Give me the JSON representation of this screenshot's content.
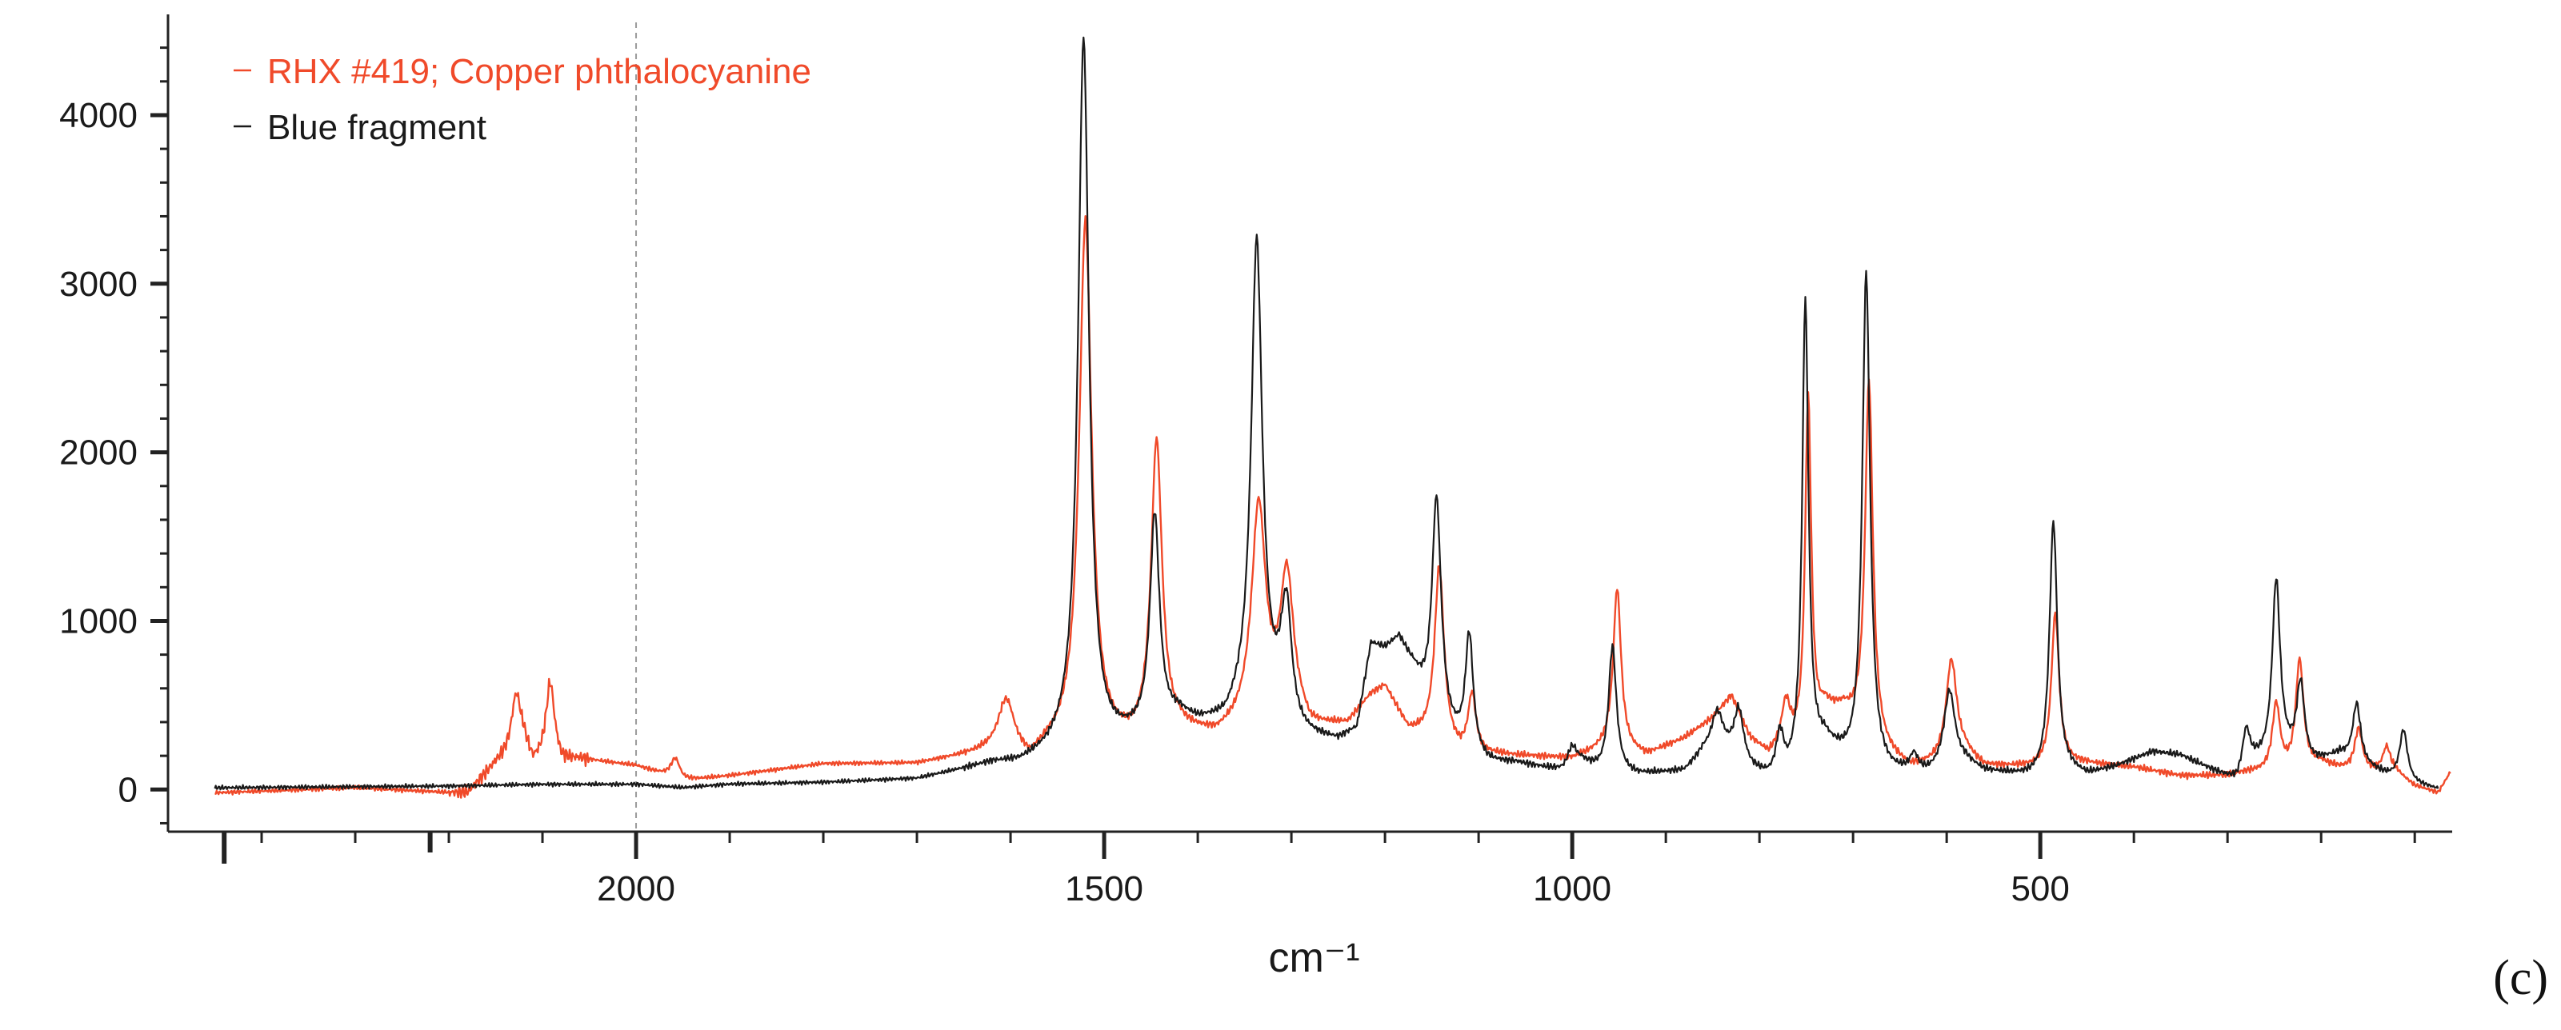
{
  "chart_data": {
    "type": "line",
    "title": "",
    "xlabel": "cm⁻¹",
    "ylabel": "",
    "xlim": [
      2500,
      60
    ],
    "ylim": [
      -250,
      4550
    ],
    "x_reversed": true,
    "grid": false,
    "reference_line": {
      "x": 2000,
      "style": "dashed"
    },
    "legend": {
      "placement": "top-left"
    },
    "x_ticks": [
      2000,
      1500,
      1000,
      500
    ],
    "x_tick_labels": [
      "2000",
      "1500",
      "1000",
      "500"
    ],
    "y_ticks": [
      0,
      1000,
      2000,
      3000,
      4000
    ],
    "y_tick_labels": [
      "0",
      "1000",
      "2000",
      "3000",
      "4000"
    ],
    "panel_label": "(c)",
    "series": [
      {
        "name": "RHX #419; Copper phthalocyanine",
        "color": "#f04a2a",
        "baseline": [
          [
            2450,
            -20
          ],
          [
            2300,
            10
          ],
          [
            2200,
            -20
          ],
          [
            2180,
            -20
          ],
          [
            2150,
            150
          ],
          [
            2130,
            230
          ],
          [
            2120,
            260
          ],
          [
            2110,
            150
          ],
          [
            2100,
            200
          ],
          [
            2090,
            280
          ],
          [
            2080,
            170
          ],
          [
            2060,
            180
          ],
          [
            2000,
            140
          ],
          [
            1950,
            50
          ],
          [
            1900,
            80
          ],
          [
            1800,
            150
          ],
          [
            1700,
            150
          ],
          [
            1620,
            220
          ],
          [
            1600,
            230
          ],
          [
            1580,
            150
          ],
          [
            1560,
            230
          ],
          [
            1540,
            260
          ],
          [
            1470,
            250
          ],
          [
            1420,
            330
          ],
          [
            1380,
            300
          ],
          [
            1350,
            380
          ],
          [
            1300,
            500
          ],
          [
            1280,
            350
          ],
          [
            1240,
            380
          ],
          [
            1215,
            550
          ],
          [
            1200,
            600
          ],
          [
            1175,
            340
          ],
          [
            1155,
            300
          ],
          [
            1120,
            200
          ],
          [
            1080,
            200
          ],
          [
            1000,
            180
          ],
          [
            960,
            250
          ],
          [
            920,
            200
          ],
          [
            880,
            300
          ],
          [
            850,
            420
          ],
          [
            830,
            550
          ],
          [
            810,
            300
          ],
          [
            790,
            200
          ],
          [
            770,
            300
          ],
          [
            750,
            200
          ],
          [
            730,
            450
          ],
          [
            710,
            450
          ],
          [
            680,
            250
          ],
          [
            640,
            120
          ],
          [
            600,
            150
          ],
          [
            580,
            200
          ],
          [
            560,
            130
          ],
          [
            500,
            130
          ],
          [
            470,
            150
          ],
          [
            450,
            150
          ],
          [
            400,
            130
          ],
          [
            350,
            80
          ],
          [
            300,
            80
          ],
          [
            280,
            100
          ],
          [
            250,
            100
          ],
          [
            230,
            100
          ],
          [
            200,
            150
          ],
          [
            180,
            120
          ],
          [
            150,
            100
          ],
          [
            120,
            100
          ],
          [
            100,
            20
          ],
          [
            75,
            -20
          ],
          [
            62,
            100
          ]
        ],
        "peaks": [
          [
            2128,
            330,
            6
          ],
          [
            2092,
            360,
            5
          ],
          [
            1958,
            120,
            6
          ],
          [
            1605,
            280,
            10
          ],
          [
            1520,
            3100,
            8
          ],
          [
            1444,
            1750,
            7
          ],
          [
            1335,
            1250,
            9
          ],
          [
            1305,
            750,
            8
          ],
          [
            1142,
            1050,
            6
          ],
          [
            1107,
            350,
            5
          ],
          [
            952,
            950,
            5
          ],
          [
            772,
            200,
            5
          ],
          [
            748,
            2100,
            4
          ],
          [
            683,
            2150,
            5
          ],
          [
            595,
            600,
            7
          ],
          [
            484,
            900,
            5
          ],
          [
            248,
            400,
            5
          ],
          [
            223,
            650,
            5
          ],
          [
            160,
            250,
            5
          ],
          [
            130,
            150,
            5
          ]
        ]
      },
      {
        "name": "Blue fragment",
        "color": "#1a1a1a",
        "baseline": [
          [
            2450,
            10
          ],
          [
            2200,
            20
          ],
          [
            2100,
            30
          ],
          [
            2000,
            30
          ],
          [
            1950,
            10
          ],
          [
            1900,
            30
          ],
          [
            1800,
            40
          ],
          [
            1700,
            60
          ],
          [
            1620,
            150
          ],
          [
            1590,
            150
          ],
          [
            1560,
            200
          ],
          [
            1540,
            250
          ],
          [
            1500,
            250
          ],
          [
            1470,
            300
          ],
          [
            1420,
            420
          ],
          [
            1400,
            380
          ],
          [
            1370,
            380
          ],
          [
            1340,
            550
          ],
          [
            1310,
            420
          ],
          [
            1300,
            300
          ],
          [
            1250,
            280
          ],
          [
            1230,
            350
          ],
          [
            1215,
            850
          ],
          [
            1200,
            820
          ],
          [
            1185,
            880
          ],
          [
            1170,
            700
          ],
          [
            1150,
            400
          ],
          [
            1110,
            200
          ],
          [
            1090,
            150
          ],
          [
            1060,
            150
          ],
          [
            1010,
            100
          ],
          [
            990,
            150
          ],
          [
            970,
            100
          ],
          [
            930,
            80
          ],
          [
            880,
            100
          ],
          [
            860,
            200
          ],
          [
            830,
            180
          ],
          [
            810,
            100
          ],
          [
            790,
            50
          ],
          [
            770,
            50
          ],
          [
            750,
            150
          ],
          [
            730,
            250
          ],
          [
            700,
            120
          ],
          [
            660,
            80
          ],
          [
            620,
            80
          ],
          [
            600,
            120
          ],
          [
            580,
            150
          ],
          [
            560,
            100
          ],
          [
            510,
            70
          ],
          [
            470,
            100
          ],
          [
            450,
            80
          ],
          [
            420,
            130
          ],
          [
            380,
            220
          ],
          [
            350,
            200
          ],
          [
            320,
            120
          ],
          [
            290,
            40
          ],
          [
            270,
            150
          ],
          [
            240,
            200
          ],
          [
            210,
            150
          ],
          [
            180,
            200
          ],
          [
            160,
            150
          ],
          [
            130,
            80
          ],
          [
            100,
            30
          ],
          [
            75,
            0
          ]
        ],
        "peaks": [
          [
            1522,
            4200,
            7
          ],
          [
            1446,
            1250,
            6
          ],
          [
            1337,
            2700,
            7
          ],
          [
            1305,
            700,
            7
          ],
          [
            1145,
            1350,
            6
          ],
          [
            1110,
            700,
            5
          ],
          [
            1000,
            120,
            6
          ],
          [
            957,
            750,
            5
          ],
          [
            845,
            250,
            8
          ],
          [
            822,
            300,
            6
          ],
          [
            778,
            250,
            5
          ],
          [
            751,
            2750,
            4
          ],
          [
            686,
            2950,
            5
          ],
          [
            635,
            100,
            5
          ],
          [
            597,
            450,
            7
          ],
          [
            486,
            1500,
            5
          ],
          [
            280,
            250,
            5
          ],
          [
            248,
            1050,
            5
          ],
          [
            222,
            450,
            5
          ],
          [
            162,
            350,
            5
          ],
          [
            112,
            300,
            5
          ]
        ]
      }
    ]
  }
}
